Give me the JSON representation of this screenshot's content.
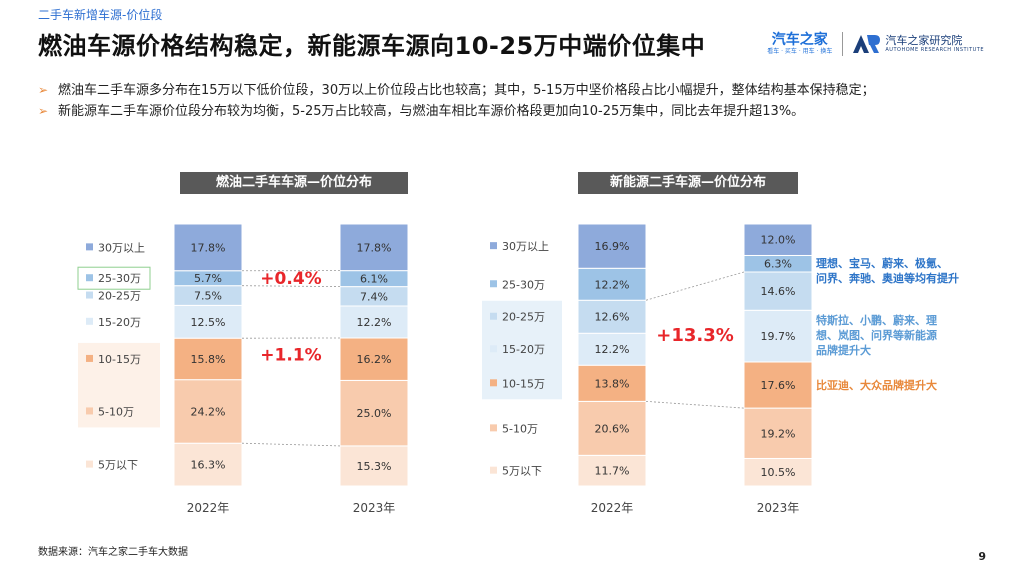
{
  "breadcrumb": "二手车新增车源-价位段",
  "title": "燃油车源价格结构稳定，新能源车源向10-25万中端价位集中",
  "logos": {
    "brand1_main": "汽车之家",
    "brand1_sub": "看车 · 买车 · 用车 · 换车",
    "brand2_main": "汽车之家研究院",
    "brand2_sub": "AUTOHOME RESEARCH INSTITUTE"
  },
  "bullets": [
    "燃油车二手车源多分布在15万以下低价位段，30万以上价位段占比也较高；其中，5-15万中坚价格段占比小幅提升，整体结构基本保持稳定；",
    "新能源车二手车源价位段分布较为均衡，5-25万占比较高，与燃油车相比车源价格段更加向10-25万集中，同比去年提升超13%。"
  ],
  "colors": {
    "30万以上": "#8eaadb",
    "25-30万": "#9dc3e6",
    "20-25万": "#c5dcf0",
    "15-20万": "#ddebf7",
    "10-15万": "#f4b183",
    "5-10万": "#f8cbad",
    "5万以下": "#fbe5d6",
    "up_text": "#e8262a",
    "annot_blue": "#2e75c8",
    "annot_lightblue": "#5b9bd5",
    "annot_orange": "#e8883a"
  },
  "chart_data": [
    {
      "type": "bar",
      "stacked": true,
      "title": "燃油二手车车源—价位分布",
      "categories": [
        "2022年",
        "2023年"
      ],
      "series": [
        {
          "name": "5万以下",
          "values": [
            16.3,
            15.3
          ]
        },
        {
          "name": "5-10万",
          "values": [
            24.2,
            25.0
          ]
        },
        {
          "name": "10-15万",
          "values": [
            15.8,
            16.2
          ]
        },
        {
          "name": "15-20万",
          "values": [
            12.5,
            12.2
          ]
        },
        {
          "name": "20-25万",
          "values": [
            7.5,
            7.4
          ]
        },
        {
          "name": "25-30万",
          "values": [
            5.7,
            6.1
          ]
        },
        {
          "name": "30万以上",
          "values": [
            17.8,
            17.8
          ]
        }
      ],
      "value_suffix": "%",
      "callouts": [
        "+0.4%",
        "+1.1%"
      ]
    },
    {
      "type": "bar",
      "stacked": true,
      "title": "新能源二手车源—价位分布",
      "categories": [
        "2022年",
        "2023年"
      ],
      "series": [
        {
          "name": "5万以下",
          "values": [
            11.7,
            10.5
          ]
        },
        {
          "name": "5-10万",
          "values": [
            20.6,
            19.2
          ]
        },
        {
          "name": "10-15万",
          "values": [
            13.8,
            17.6
          ]
        },
        {
          "name": "15-20万",
          "values": [
            12.2,
            19.7
          ]
        },
        {
          "name": "20-25万",
          "values": [
            12.6,
            14.6
          ]
        },
        {
          "name": "25-30万",
          "values": [
            12.2,
            6.3
          ]
        },
        {
          "name": "30万以上",
          "values": [
            16.9,
            12.0
          ]
        }
      ],
      "value_suffix": "%",
      "callouts": [
        "+13.3%"
      ],
      "annotations": [
        {
          "text": [
            "理想、宝马、蔚来、极氪、",
            "问界、奔驰、奥迪等均有提升"
          ],
          "color": "#2e75c8"
        },
        {
          "text": [
            "特斯拉、小鹏、蔚来、理",
            "想、岚图、问界等新能源",
            "品牌提升大"
          ],
          "color": "#5b9bd5"
        },
        {
          "text": [
            "比亚迪、大众品牌提升大"
          ],
          "color": "#e8883a"
        }
      ]
    }
  ],
  "source": "数据来源：汽车之家二手车大数据",
  "page_number": "9"
}
